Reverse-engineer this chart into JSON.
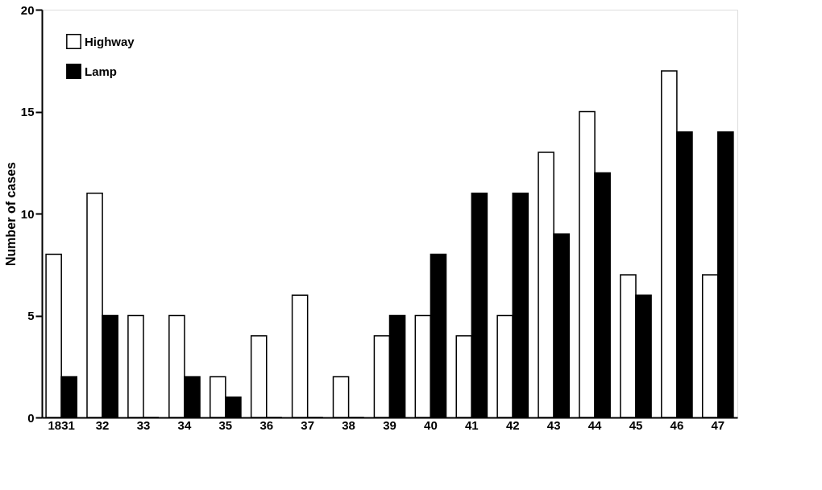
{
  "chart_data": {
    "type": "bar",
    "ylabel": "Number of cases",
    "categories": [
      "1831",
      "32",
      "33",
      "34",
      "35",
      "36",
      "37",
      "38",
      "39",
      "40",
      "41",
      "42",
      "43",
      "44",
      "45",
      "46",
      "47"
    ],
    "series": [
      {
        "name": "Highway",
        "color": "#ffffff",
        "values": [
          8,
          11,
          5,
          5,
          2,
          4,
          6,
          2,
          4,
          5,
          4,
          5,
          13,
          15,
          7,
          17,
          7
        ]
      },
      {
        "name": "Lamp",
        "color": "#000000",
        "values": [
          2,
          5,
          0,
          2,
          1,
          0,
          0,
          0,
          5,
          8,
          11,
          11,
          9,
          12,
          6,
          14,
          14
        ]
      }
    ],
    "ylim": [
      0,
      20
    ],
    "yticks": [
      0,
      5,
      10,
      15,
      20
    ],
    "grid": false,
    "legend": "top left"
  }
}
